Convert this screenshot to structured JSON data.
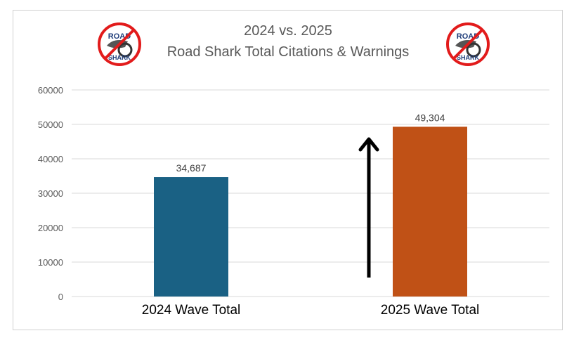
{
  "chart_data": {
    "type": "bar",
    "title": "2024 vs. 2025",
    "subtitle": "Road Shark Total Citations & Warnings",
    "categories": [
      "2024 Wave Total",
      "2025 Wave Total"
    ],
    "values": [
      34687,
      49304
    ],
    "data_labels": [
      "34,687",
      "49,304"
    ],
    "colors": [
      "#1a6184",
      "#c05116"
    ],
    "ylim": [
      0,
      60000
    ],
    "yticks": [
      "0",
      "10000",
      "20000",
      "30000",
      "40000",
      "50000",
      "60000"
    ],
    "grid": true,
    "xlabel": "",
    "ylabel": "",
    "annotations": [
      "up-arrow"
    ],
    "logo_text": [
      "ROAD",
      "SHARK"
    ]
  }
}
